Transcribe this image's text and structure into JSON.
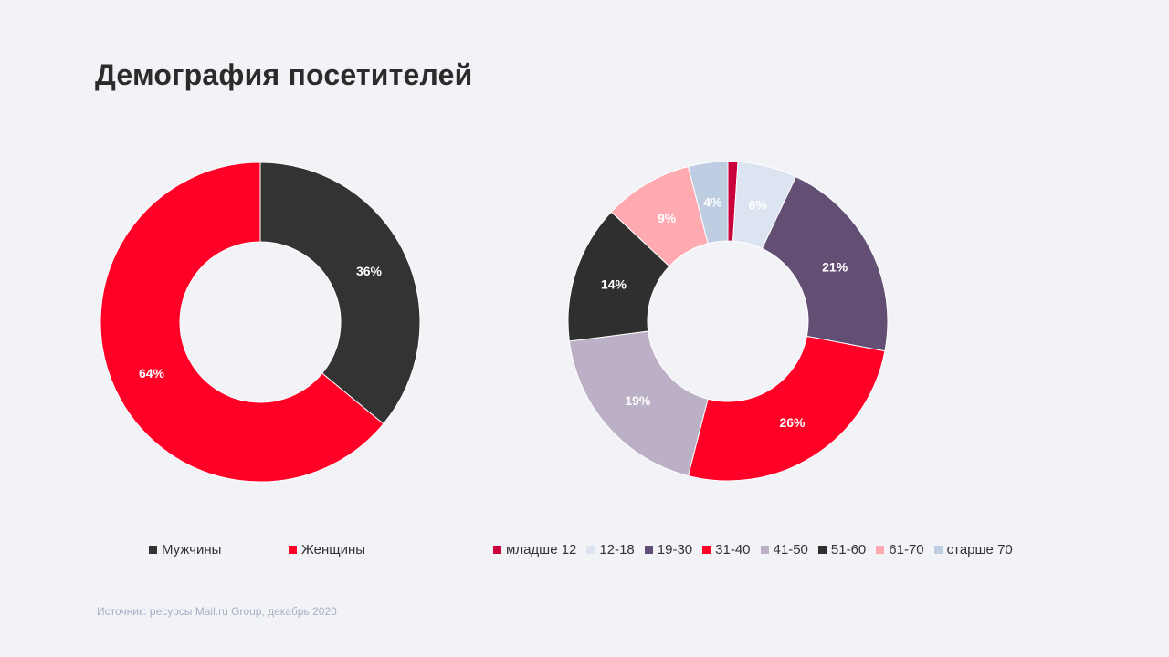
{
  "title": "Демография посетителей",
  "source": "Источник: ресурсы Mail.ru Group, декабрь 2020",
  "colors": {
    "background": "#f2f3f7",
    "men": "#333333",
    "women": "#ff0026"
  },
  "chart_data": [
    {
      "type": "pie",
      "variant": "donut",
      "title": "",
      "slices": [
        {
          "name": "Мужчины",
          "value": 36,
          "label": "36%",
          "color": "#333333"
        },
        {
          "name": "Женщины",
          "value": 64,
          "label": "64%",
          "color": "#ff0026"
        }
      ],
      "legend": {
        "position": "bottom"
      }
    },
    {
      "type": "pie",
      "variant": "donut",
      "title": "",
      "slices": [
        {
          "name": "младше 12",
          "value": 1,
          "label": "",
          "color": "#c8003c"
        },
        {
          "name": "12-18",
          "value": 6,
          "label": "6%",
          "color": "#dce4f1"
        },
        {
          "name": "19-30",
          "value": 21,
          "label": "21%",
          "color": "#634f74"
        },
        {
          "name": "31-40",
          "value": 26,
          "label": "26%",
          "color": "#ff0026"
        },
        {
          "name": "41-50",
          "value": 19,
          "label": "19%",
          "color": "#bbb0c5"
        },
        {
          "name": "51-60",
          "value": 14,
          "label": "14%",
          "color": "#2f2f2f"
        },
        {
          "name": "61-70",
          "value": 9,
          "label": "9%",
          "color": "#ffa9b1"
        },
        {
          "name": "старше 70",
          "value": 4,
          "label": "4%",
          "color": "#bfcde3"
        }
      ],
      "legend": {
        "position": "bottom"
      }
    }
  ]
}
